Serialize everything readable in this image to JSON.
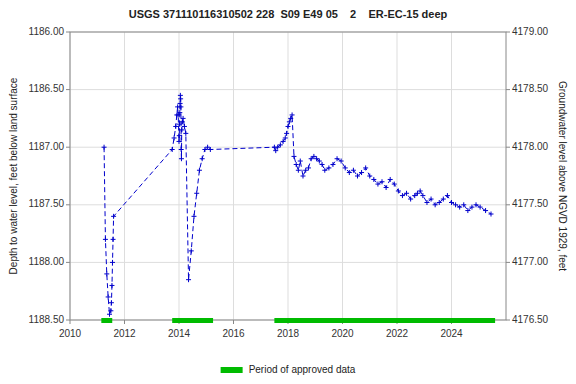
{
  "chart_data": {
    "type": "line",
    "title": "USGS 371110116310502 228  S09 E49 05    2    ER-EC-15 deep",
    "ylabel": "Depth to water level, feet below land surface",
    "y2label": "Groundwater level above NGVD 1929, feet",
    "xlim": [
      2010,
      2026
    ],
    "ylim": [
      1188.5,
      1186.0
    ],
    "y2lim": [
      4176.5,
      4179.0
    ],
    "xticks": [
      2010,
      2012,
      2014,
      2016,
      2018,
      2020,
      2022,
      2024
    ],
    "yticks": [
      {
        "value": 1186.0,
        "label": "1186.00"
      },
      {
        "value": 1186.5,
        "label": "1186.50"
      },
      {
        "value": 1187.0,
        "label": "1187.00"
      },
      {
        "value": 1187.5,
        "label": "1187.50"
      },
      {
        "value": 1188.0,
        "label": "1188.00"
      },
      {
        "value": 1188.5,
        "label": "1188.50"
      }
    ],
    "y2ticks": [
      {
        "value": 4179.0,
        "label": "4179.00"
      },
      {
        "value": 4178.5,
        "label": "4178.50"
      },
      {
        "value": 4178.0,
        "label": "4178.00"
      },
      {
        "value": 4177.5,
        "label": "4177.50"
      },
      {
        "value": 4177.0,
        "label": "4177.00"
      },
      {
        "value": 4176.5,
        "label": "4176.50"
      }
    ],
    "grid": true,
    "legend": "bottom",
    "x": [
      2011.25,
      2011.3,
      2011.35,
      2011.4,
      2011.45,
      2011.5,
      2011.52,
      2011.54,
      2011.56,
      2011.58,
      2011.6,
      2013.75,
      2013.82,
      2013.88,
      2013.92,
      2013.95,
      2013.97,
      2014.0,
      2014.01,
      2014.02,
      2014.03,
      2014.04,
      2014.05,
      2014.06,
      2014.07,
      2014.08,
      2014.09,
      2014.1,
      2014.12,
      2014.15,
      2014.2,
      2014.25,
      2014.35,
      2014.45,
      2014.55,
      2014.65,
      2014.75,
      2014.85,
      2014.95,
      2015.05,
      2015.15,
      2017.5,
      2017.55,
      2017.62,
      2017.72,
      2017.82,
      2017.9,
      2017.95,
      2018.0,
      2018.05,
      2018.1,
      2018.15,
      2018.22,
      2018.3,
      2018.38,
      2018.45,
      2018.55,
      2018.65,
      2018.75,
      2018.85,
      2018.95,
      2019.05,
      2019.15,
      2019.25,
      2019.35,
      2019.5,
      2019.65,
      2019.8,
      2019.95,
      2020.1,
      2020.25,
      2020.4,
      2020.55,
      2020.7,
      2020.85,
      2021.0,
      2021.15,
      2021.3,
      2021.45,
      2021.6,
      2021.75,
      2021.9,
      2022.05,
      2022.2,
      2022.35,
      2022.5,
      2022.65,
      2022.75,
      2022.85,
      2022.95,
      2023.1,
      2023.25,
      2023.4,
      2023.55,
      2023.7,
      2023.85,
      2024.0,
      2024.15,
      2024.3,
      2024.45,
      2024.6,
      2024.75,
      2024.9,
      2025.05,
      2025.25,
      2025.45
    ],
    "series": [
      {
        "type": "line",
        "color": "#0000cc",
        "marker": "plus",
        "line_style": "dashed",
        "values": [
          1187.0,
          1187.8,
          1188.1,
          1188.3,
          1188.45,
          1188.42,
          1188.35,
          1188.2,
          1188.0,
          1187.8,
          1187.6,
          1187.02,
          1186.92,
          1186.82,
          1186.72,
          1186.65,
          1186.72,
          1186.95,
          1186.9,
          1186.8,
          1186.7,
          1186.62,
          1186.55,
          1186.58,
          1186.65,
          1187.02,
          1187.1,
          1186.85,
          1186.78,
          1186.75,
          1186.82,
          1186.88,
          1188.15,
          1187.9,
          1187.6,
          1187.4,
          1187.2,
          1187.1,
          1187.02,
          1187.0,
          1187.02,
          1187.0,
          1187.03,
          1187.0,
          1186.98,
          1186.95,
          1186.92,
          1186.88,
          1186.82,
          1186.78,
          1186.75,
          1186.72,
          1187.08,
          1187.15,
          1187.2,
          1187.12,
          1187.25,
          1187.2,
          1187.18,
          1187.1,
          1187.08,
          1187.1,
          1187.12,
          1187.15,
          1187.2,
          1187.18,
          1187.15,
          1187.1,
          1187.12,
          1187.18,
          1187.22,
          1187.2,
          1187.25,
          1187.22,
          1187.18,
          1187.25,
          1187.28,
          1187.32,
          1187.3,
          1187.35,
          1187.28,
          1187.32,
          1187.38,
          1187.42,
          1187.4,
          1187.45,
          1187.42,
          1187.4,
          1187.38,
          1187.42,
          1187.48,
          1187.45,
          1187.5,
          1187.48,
          1187.45,
          1187.42,
          1187.48,
          1187.5,
          1187.52,
          1187.5,
          1187.55,
          1187.52,
          1187.5,
          1187.52,
          1187.55,
          1187.58
        ]
      },
      {
        "type": "range",
        "name": "Period of approved data",
        "color": "#00bb00",
        "values": [
          [
            2011.15,
            2011.55
          ],
          [
            2013.75,
            2015.25
          ],
          [
            2017.5,
            2025.6
          ]
        ]
      }
    ]
  }
}
